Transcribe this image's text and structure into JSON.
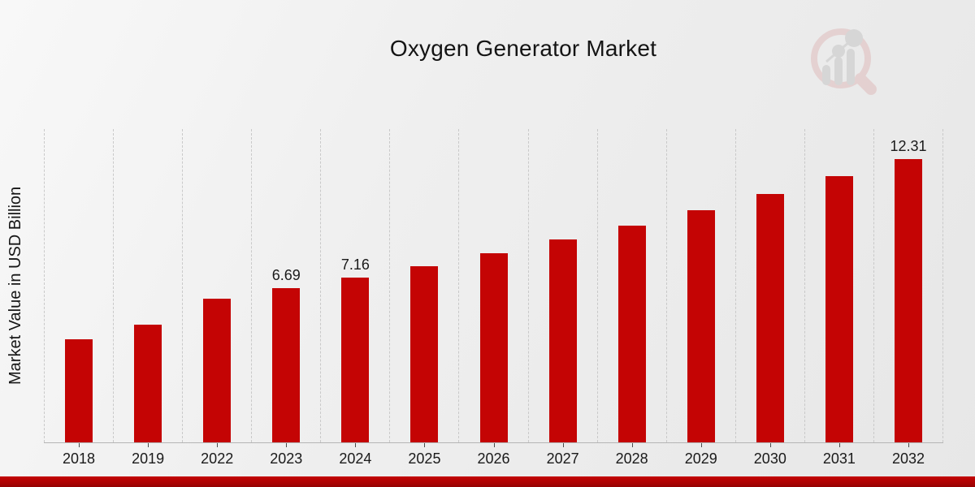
{
  "title": "Oxygen Generator Market",
  "ylabel": "Market Value in USD Billion",
  "watermark_icon": "magnifier-bar-chart-logo",
  "colors": {
    "bar": "#c40404",
    "grid": "#c9c9c9",
    "axis_line": "#b5b5b5",
    "footer_accent": "#b00202",
    "watermark_ring": "#dfbcbc",
    "watermark_bars": "#c6c6c6"
  },
  "chart_data": {
    "type": "bar",
    "title": "Oxygen Generator Market",
    "xlabel": "",
    "ylabel": "Market Value in USD Billion",
    "categories": [
      "2018",
      "2019",
      "2022",
      "2023",
      "2024",
      "2025",
      "2026",
      "2027",
      "2028",
      "2029",
      "2030",
      "2031",
      "2032"
    ],
    "values": [
      4.48,
      5.11,
      6.23,
      6.69,
      7.16,
      7.66,
      8.22,
      8.82,
      9.4,
      10.06,
      10.78,
      11.57,
      12.31
    ],
    "data_labels": [
      "",
      "",
      "",
      "6.69",
      "7.16",
      "",
      "",
      "",
      "",
      "",
      "",
      "",
      "12.31"
    ],
    "ylim": [
      0,
      13.6
    ],
    "grid": "vertical-dashed",
    "y_tick_labels": "none",
    "legend": "none"
  }
}
